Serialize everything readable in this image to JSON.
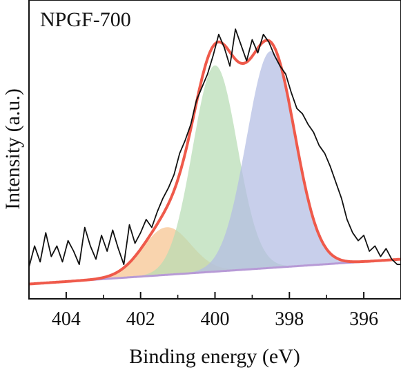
{
  "chart_data": {
    "type": "line",
    "title": "NPGF-700",
    "xlabel": "Binding energy (eV)",
    "ylabel": "Intensity (a.u.)",
    "xlim": [
      405,
      395
    ],
    "x_reversed": true,
    "ylim": [
      0,
      1.13
    ],
    "y_ticks_labeled": false,
    "x_ticks": [
      404,
      402,
      400,
      398,
      396
    ],
    "legend": "none",
    "background": {
      "start": 0.056,
      "end": 0.15
    },
    "peaks": [
      {
        "center": 401.3,
        "height": 0.18,
        "sigma": 0.65,
        "color": "#f6c48f"
      },
      {
        "center": 400.0,
        "height": 0.78,
        "sigma": 0.6,
        "color": "#b7dcb4"
      },
      {
        "center": 398.5,
        "height": 0.82,
        "sigma": 0.65,
        "color": "#b3bde3"
      }
    ],
    "envelope_color": "#ef5a4b",
    "raw_data": {
      "x": [
        405.0,
        404.85,
        404.7,
        404.55,
        404.4,
        404.25,
        404.1,
        403.95,
        403.8,
        403.65,
        403.5,
        403.35,
        403.2,
        403.05,
        402.9,
        402.75,
        402.6,
        402.45,
        402.3,
        402.15,
        402.0,
        401.85,
        401.7,
        401.55,
        401.4,
        401.25,
        401.1,
        400.95,
        400.8,
        400.65,
        400.5,
        400.35,
        400.2,
        400.05,
        399.9,
        399.75,
        399.6,
        399.45,
        399.3,
        399.15,
        399.0,
        398.85,
        398.7,
        398.55,
        398.4,
        398.25,
        398.1,
        397.95,
        397.8,
        397.65,
        397.5,
        397.35,
        397.2,
        397.05,
        396.9,
        396.75,
        396.6,
        396.45,
        396.3,
        396.15,
        396.0,
        395.85,
        395.7,
        395.55,
        395.4,
        395.25,
        395.1,
        395.0
      ],
      "y": [
        0.12,
        0.2,
        0.14,
        0.25,
        0.16,
        0.2,
        0.14,
        0.22,
        0.18,
        0.13,
        0.27,
        0.2,
        0.15,
        0.24,
        0.18,
        0.26,
        0.19,
        0.13,
        0.28,
        0.21,
        0.25,
        0.3,
        0.27,
        0.33,
        0.38,
        0.42,
        0.47,
        0.55,
        0.6,
        0.66,
        0.75,
        0.8,
        0.85,
        0.92,
        1.0,
        0.95,
        0.88,
        1.02,
        0.96,
        0.9,
        0.98,
        0.93,
        1.0,
        0.97,
        0.92,
        0.88,
        0.85,
        0.78,
        0.72,
        0.7,
        0.66,
        0.63,
        0.58,
        0.55,
        0.5,
        0.44,
        0.38,
        0.3,
        0.25,
        0.22,
        0.24,
        0.18,
        0.2,
        0.16,
        0.19,
        0.15,
        0.13,
        0.13
      ]
    }
  }
}
